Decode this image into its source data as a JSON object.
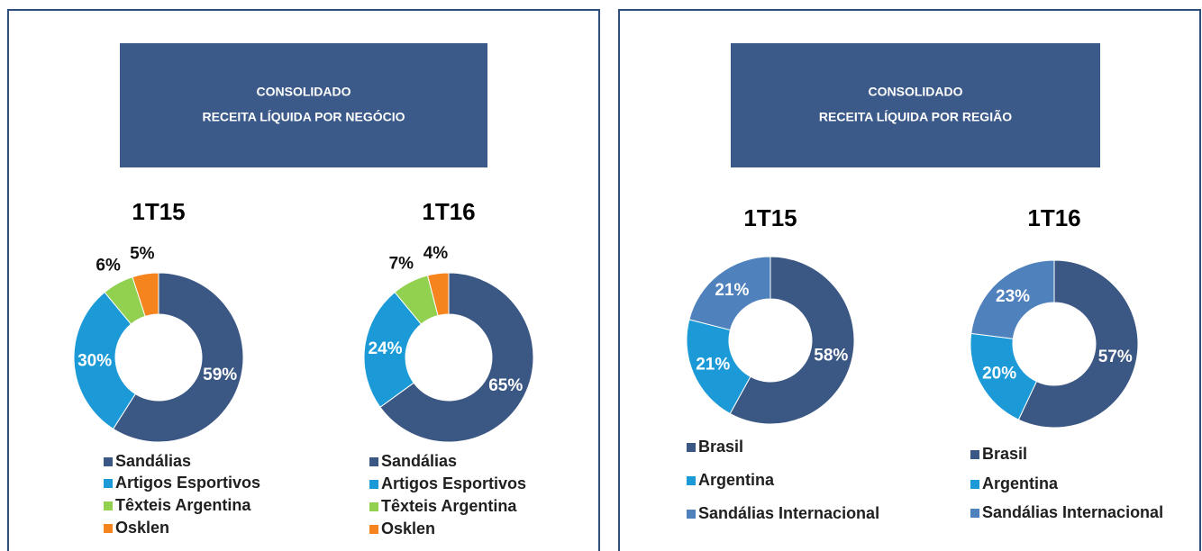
{
  "panels": [
    {
      "header": [
        "CONSOLIDADO",
        "RECEITA  LÍQUIDA POR NEGÓCIO"
      ]
    },
    {
      "header": [
        "CONSOLIDADO",
        "RECEITA  LÍQUIDA  POR  REGIÃO"
      ]
    }
  ],
  "chart_data": [
    {
      "type": "donut",
      "title": "1T15",
      "categories": [
        "Sandálias",
        "Artigos Esportivos",
        "Têxteis Argentina",
        "Osklen"
      ],
      "values": [
        59,
        30,
        6,
        5
      ],
      "value_labels": [
        "59%",
        "30%",
        "6%",
        "5%"
      ],
      "colors": [
        "#3b5783",
        "#1b9ad7",
        "#92d050",
        "#f5841f"
      ]
    },
    {
      "type": "donut",
      "title": "1T16",
      "categories": [
        "Sandálias",
        "Artigos Esportivos",
        "Têxteis Argentina",
        "Osklen"
      ],
      "values": [
        65,
        24,
        7,
        4
      ],
      "value_labels": [
        "65%",
        "24%",
        "7%",
        "4%"
      ],
      "colors": [
        "#3b5783",
        "#1b9ad7",
        "#92d050",
        "#f5841f"
      ]
    },
    {
      "type": "donut",
      "title": "1T15",
      "categories": [
        "Brasil",
        "Argentina",
        "Sandálias Internacional"
      ],
      "values": [
        58,
        21,
        21
      ],
      "value_labels": [
        "58%",
        "21%",
        "21%"
      ],
      "colors": [
        "#3b5783",
        "#1b9ad7",
        "#4f81bd"
      ]
    },
    {
      "type": "donut",
      "title": "1T16",
      "categories": [
        "Brasil",
        "Argentina",
        "Sandálias Internacional"
      ],
      "values": [
        57,
        20,
        23
      ],
      "value_labels": [
        "57%",
        "20%",
        "23%"
      ],
      "colors": [
        "#3b5783",
        "#1b9ad7",
        "#4f81bd"
      ]
    }
  ]
}
